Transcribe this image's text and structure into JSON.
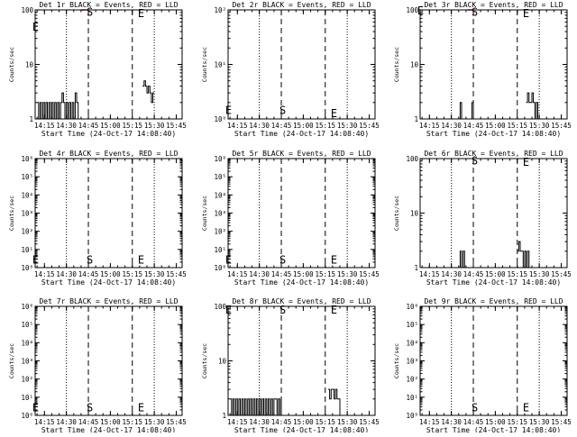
{
  "figure": {
    "x_ticks": [
      "14:15",
      "14:30",
      "14:45",
      "15:00",
      "15:15",
      "15:30",
      "15:45"
    ],
    "x_label": "Start Time (24-Oct-17 14:08:40)",
    "y_label": "Counts/sec"
  },
  "chart_data": [
    {
      "type": "line",
      "title": "Det 1r BLACK = Events, RED = LLD",
      "y_scale": "log",
      "ylim": [
        1,
        100
      ],
      "y_ticks": [
        {
          "v": 1,
          "label": "1"
        },
        {
          "v": 10,
          "label": "10"
        },
        {
          "v": 100,
          "label": "100"
        }
      ],
      "xlim": [
        "14:08:40",
        "15:49"
      ],
      "markers": [
        {
          "label": "E",
          "x": "14:09",
          "y": 50
        },
        {
          "label": "S",
          "x": "14:46",
          "y": 95
        },
        {
          "label": "E",
          "x": "15:21",
          "y": 90
        }
      ],
      "series": [
        {
          "color": "#000000",
          "points": [
            [
              "14:10",
              2
            ],
            [
              "14:11",
              1
            ],
            [
              "14:12",
              2
            ],
            [
              "14:13",
              1
            ],
            [
              "14:14",
              2
            ],
            [
              "14:15",
              1
            ],
            [
              "14:16",
              2
            ],
            [
              "14:17",
              1
            ],
            [
              "14:18",
              2
            ],
            [
              "14:19",
              1
            ],
            [
              "14:20",
              2
            ],
            [
              "14:21",
              1
            ],
            [
              "14:22",
              2
            ],
            [
              "14:23",
              1
            ],
            [
              "14:24",
              2
            ],
            [
              "14:25",
              1
            ],
            [
              "14:26",
              2
            ],
            [
              "14:27",
              3
            ],
            [
              "14:28",
              2
            ],
            [
              "14:29",
              1
            ],
            [
              "14:30",
              2
            ],
            [
              "14:31",
              1
            ],
            [
              "14:32",
              2
            ],
            [
              "14:33",
              1
            ],
            [
              "14:34",
              2
            ],
            [
              "14:35",
              1
            ],
            [
              "14:36",
              3
            ],
            [
              "14:37",
              2
            ],
            [
              "14:38",
              1
            ]
          ]
        },
        {
          "color": "#000000",
          "points": [
            [
              "15:22",
              4
            ],
            [
              "15:23",
              5
            ],
            [
              "15:24",
              4
            ],
            [
              "15:25",
              3
            ],
            [
              "15:26",
              4
            ],
            [
              "15:27",
              3
            ],
            [
              "15:28",
              2
            ],
            [
              "15:29",
              3
            ],
            [
              "15:30",
              3
            ]
          ]
        },
        {
          "color": "#ff0000",
          "points": [
            [
              "14:40",
              100
            ],
            [
              "14:44",
              100
            ]
          ]
        }
      ]
    },
    {
      "type": "line",
      "title": "Det 2r BLACK = Events, RED = LLD",
      "y_scale": "log",
      "ylim": [
        1,
        100
      ],
      "y_ticks": [
        {
          "v": 1,
          "label": "10⁰"
        },
        {
          "v": 10,
          "label": "10¹"
        },
        {
          "v": 100,
          "label": "10²"
        }
      ],
      "xlim": [
        "14:08:40",
        "15:49"
      ],
      "markers": [
        {
          "label": "E",
          "x": "14:09",
          "y": 1.5
        },
        {
          "label": "S",
          "x": "14:46",
          "y": 1.5
        },
        {
          "label": "E",
          "x": "15:21",
          "y": 1.3
        }
      ],
      "series": []
    },
    {
      "type": "line",
      "title": "Det 3r BLACK = Events, RED = LLD",
      "y_scale": "log",
      "ylim": [
        1,
        100
      ],
      "y_ticks": [
        {
          "v": 1,
          "label": "1"
        },
        {
          "v": 10,
          "label": "10"
        },
        {
          "v": 100,
          "label": "100"
        }
      ],
      "xlim": [
        "14:08:40",
        "15:49"
      ],
      "markers": [
        {
          "label": "E",
          "x": "14:09",
          "y": 100
        },
        {
          "label": "S",
          "x": "14:46",
          "y": 95
        },
        {
          "label": "E",
          "x": "15:21",
          "y": 90
        }
      ],
      "series": [
        {
          "color": "#000000",
          "points": [
            [
              "14:35",
              1
            ],
            [
              "14:36",
              2
            ],
            [
              "14:37",
              1
            ]
          ]
        },
        {
          "color": "#000000",
          "points": [
            [
              "14:43",
              1
            ],
            [
              "14:44",
              2
            ],
            [
              "14:45",
              1
            ]
          ]
        },
        {
          "color": "#000000",
          "points": [
            [
              "15:21",
              2
            ],
            [
              "15:22",
              3
            ],
            [
              "15:23",
              2
            ],
            [
              "15:24",
              2
            ],
            [
              "15:25",
              3
            ],
            [
              "15:26",
              2
            ],
            [
              "15:27",
              1
            ],
            [
              "15:28",
              2
            ],
            [
              "15:29",
              1
            ]
          ]
        },
        {
          "color": "#ff0000",
          "points": [
            [
              "14:41",
              100
            ],
            [
              "14:45",
              100
            ]
          ]
        }
      ]
    },
    {
      "type": "line",
      "title": "Det 4r BLACK = Events, RED = LLD",
      "y_scale": "log",
      "ylim": [
        1,
        1000000
      ],
      "y_ticks": [
        {
          "v": 1,
          "label": "10⁰"
        },
        {
          "v": 10,
          "label": "10¹"
        },
        {
          "v": 100,
          "label": "10²"
        },
        {
          "v": 1000,
          "label": "10³"
        },
        {
          "v": 10000,
          "label": "10⁴"
        },
        {
          "v": 100000,
          "label": "10⁵"
        },
        {
          "v": 1000000,
          "label": "10⁶"
        }
      ],
      "xlim": [
        "14:08:40",
        "15:49"
      ],
      "markers": [
        {
          "label": "E",
          "x": "14:09",
          "y": 3
        },
        {
          "label": "S",
          "x": "14:46",
          "y": 3
        },
        {
          "label": "E",
          "x": "15:21",
          "y": 3
        }
      ],
      "series": []
    },
    {
      "type": "line",
      "title": "Det 5r BLACK = Events, RED = LLD",
      "y_scale": "log",
      "ylim": [
        1,
        1000000
      ],
      "y_ticks": [
        {
          "v": 1,
          "label": "10⁰"
        },
        {
          "v": 10,
          "label": "10¹"
        },
        {
          "v": 100,
          "label": "10²"
        },
        {
          "v": 1000,
          "label": "10³"
        },
        {
          "v": 10000,
          "label": "10⁴"
        },
        {
          "v": 100000,
          "label": "10⁵"
        },
        {
          "v": 1000000,
          "label": "10⁶"
        }
      ],
      "xlim": [
        "14:08:40",
        "15:49"
      ],
      "markers": [
        {
          "label": "E",
          "x": "14:09",
          "y": 3
        },
        {
          "label": "S",
          "x": "14:46",
          "y": 3
        },
        {
          "label": "E",
          "x": "15:21",
          "y": 3
        }
      ],
      "series": []
    },
    {
      "type": "line",
      "title": "Det 6r BLACK = Events, RED = LLD",
      "y_scale": "log",
      "ylim": [
        1,
        100
      ],
      "y_ticks": [
        {
          "v": 1,
          "label": "1"
        },
        {
          "v": 10,
          "label": "10"
        },
        {
          "v": 100,
          "label": "100"
        }
      ],
      "xlim": [
        "14:08:40",
        "15:49"
      ],
      "markers": [
        {
          "label": "S",
          "x": "14:46",
          "y": 95
        },
        {
          "label": "E",
          "x": "15:21",
          "y": 90
        }
      ],
      "series": [
        {
          "color": "#000000",
          "points": [
            [
              "14:35",
              1
            ],
            [
              "14:36",
              2
            ],
            [
              "14:37",
              1
            ],
            [
              "14:38",
              2
            ],
            [
              "14:39",
              1
            ]
          ]
        },
        {
          "color": "#000000",
          "points": [
            [
              "15:15",
              2
            ],
            [
              "15:16",
              3
            ],
            [
              "15:17",
              2
            ],
            [
              "15:18",
              2
            ],
            [
              "15:19",
              1
            ],
            [
              "15:20",
              2
            ],
            [
              "15:21",
              1
            ],
            [
              "15:22",
              2
            ],
            [
              "15:23",
              1
            ]
          ]
        }
      ]
    },
    {
      "type": "line",
      "title": "Det 7r BLACK = Events, RED = LLD",
      "y_scale": "log",
      "ylim": [
        1,
        1000000
      ],
      "y_ticks": [
        {
          "v": 1,
          "label": "10⁰"
        },
        {
          "v": 10,
          "label": "10¹"
        },
        {
          "v": 100,
          "label": "10²"
        },
        {
          "v": 1000,
          "label": "10³"
        },
        {
          "v": 10000,
          "label": "10⁴"
        },
        {
          "v": 100000,
          "label": "10⁵"
        },
        {
          "v": 1000000,
          "label": "10⁶"
        }
      ],
      "xlim": [
        "14:08:40",
        "15:49"
      ],
      "markers": [
        {
          "label": "E",
          "x": "14:09",
          "y": 3
        },
        {
          "label": "S",
          "x": "14:46",
          "y": 3
        },
        {
          "label": "E",
          "x": "15:21",
          "y": 3
        }
      ],
      "series": []
    },
    {
      "type": "line",
      "title": "Det 8r BLACK = Events, RED = LLD",
      "y_scale": "log",
      "ylim": [
        1,
        100
      ],
      "y_ticks": [
        {
          "v": 1,
          "label": "1"
        },
        {
          "v": 10,
          "label": "10"
        },
        {
          "v": 100,
          "label": "100"
        }
      ],
      "xlim": [
        "14:08:40",
        "15:49"
      ],
      "markers": [
        {
          "label": "E",
          "x": "14:09",
          "y": 90
        },
        {
          "label": "S",
          "x": "14:46",
          "y": 90
        },
        {
          "label": "E",
          "x": "15:21",
          "y": 90
        }
      ],
      "series": [
        {
          "color": "#000000",
          "points": [
            [
              "14:10",
              2
            ],
            [
              "14:11",
              1
            ],
            [
              "14:12",
              2
            ],
            [
              "14:13",
              1
            ],
            [
              "14:14",
              2
            ],
            [
              "14:15",
              1
            ],
            [
              "14:16",
              2
            ],
            [
              "14:17",
              1
            ],
            [
              "14:18",
              2
            ],
            [
              "14:19",
              1
            ],
            [
              "14:20",
              2
            ],
            [
              "14:21",
              1
            ],
            [
              "14:22",
              2
            ],
            [
              "14:23",
              1
            ],
            [
              "14:24",
              2
            ],
            [
              "14:25",
              1
            ],
            [
              "14:26",
              2
            ],
            [
              "14:27",
              1
            ],
            [
              "14:28",
              2
            ],
            [
              "14:29",
              1
            ],
            [
              "14:30",
              2
            ],
            [
              "14:31",
              1
            ],
            [
              "14:32",
              2
            ],
            [
              "14:33",
              1
            ],
            [
              "14:34",
              2
            ],
            [
              "14:35",
              1
            ],
            [
              "14:36",
              2
            ],
            [
              "14:37",
              1
            ],
            [
              "14:38",
              2
            ],
            [
              "14:39",
              1
            ],
            [
              "14:40",
              2
            ],
            [
              "14:41",
              2
            ],
            [
              "14:42",
              1
            ],
            [
              "14:43",
              2
            ],
            [
              "14:44",
              1
            ],
            [
              "14:45",
              2
            ]
          ]
        },
        {
          "color": "#000000",
          "points": [
            [
              "15:17",
              3
            ],
            [
              "15:18",
              2
            ],
            [
              "15:19",
              3
            ],
            [
              "15:20",
              3
            ],
            [
              "15:21",
              2
            ],
            [
              "15:22",
              3
            ],
            [
              "15:23",
              2
            ],
            [
              "15:24",
              2
            ],
            [
              "15:25",
              1
            ]
          ]
        }
      ]
    },
    {
      "type": "line",
      "title": "Det 9r BLACK = Events, RED = LLD",
      "y_scale": "log",
      "ylim": [
        1,
        1000000
      ],
      "y_ticks": [
        {
          "v": 1,
          "label": "10⁰"
        },
        {
          "v": 10,
          "label": "10¹"
        },
        {
          "v": 100,
          "label": "10²"
        },
        {
          "v": 1000,
          "label": "10³"
        },
        {
          "v": 10000,
          "label": "10⁴"
        },
        {
          "v": 100000,
          "label": "10⁵"
        },
        {
          "v": 1000000,
          "label": "10⁶"
        }
      ],
      "xlim": [
        "14:08:40",
        "15:49"
      ],
      "markers": [
        {
          "label": "S",
          "x": "14:46",
          "y": 3
        },
        {
          "label": "E",
          "x": "15:21",
          "y": 3
        }
      ],
      "series": []
    }
  ],
  "reference_lines": {
    "dotted": [
      "14:30",
      "15:30"
    ],
    "dashed": [
      "14:45",
      "15:15"
    ]
  }
}
